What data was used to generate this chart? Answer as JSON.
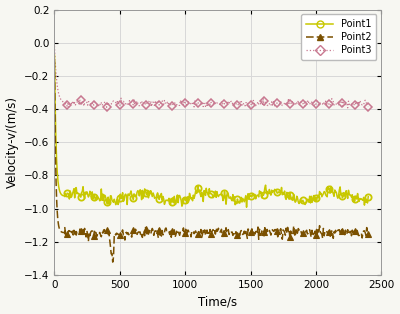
{
  "xlabel": "Time/s",
  "ylabel": "Velocity-v/(m/s)",
  "xlim": [
    0,
    2500
  ],
  "ylim": [
    -1.4,
    0.2
  ],
  "yticks": [
    0.2,
    0.0,
    -0.2,
    -0.4,
    -0.6,
    -0.8,
    -1.0,
    -1.2,
    -1.4
  ],
  "xticks": [
    0,
    500,
    1000,
    1500,
    2000,
    2500
  ],
  "bg_color": "#f7f7f2",
  "grid_color": "#d8d8d8",
  "point1_color": "#c8c800",
  "point2_color": "#7a5000",
  "point3_color": "#c87890",
  "point1_steady": -0.925,
  "point2_steady": -1.145,
  "point3_steady": -0.365,
  "figsize": [
    4.0,
    3.14
  ],
  "dpi": 100
}
